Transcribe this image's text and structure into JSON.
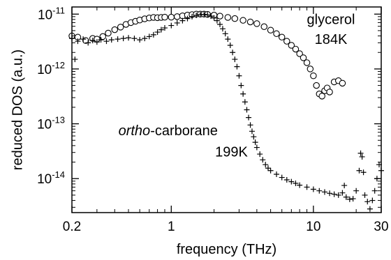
{
  "chart_data": {
    "type": "scatter",
    "title": "",
    "xlabel": "frequency (THz)",
    "ylabel": "reduced DOS (a.u.)",
    "x_scale": "log",
    "y_scale": "log",
    "xlim": [
      0.2,
      30
    ],
    "ylim": [
      2.4e-15,
      1.35e-11
    ],
    "grid": false,
    "legend": "none",
    "x_ticks": [
      {
        "value": 0.2,
        "label": "0.2"
      },
      {
        "value": 1,
        "label": "1"
      },
      {
        "value": 10,
        "label": "10"
      },
      {
        "value": 30,
        "label": "30"
      }
    ],
    "x_minor_ticks": [
      0.3,
      0.4,
      0.5,
      0.6,
      0.7,
      0.8,
      0.9,
      2,
      3,
      4,
      5,
      6,
      7,
      8,
      9,
      20
    ],
    "y_ticks": [
      {
        "value": 1e-11,
        "base": "10",
        "exp": "-11"
      },
      {
        "value": 1e-12,
        "base": "10",
        "exp": "-12"
      },
      {
        "value": 1e-13,
        "base": "10",
        "exp": "-13"
      },
      {
        "value": 1e-14,
        "base": "10",
        "exp": "-14"
      }
    ],
    "annotations": [
      {
        "id": "glycerol-name",
        "text": "glycerol",
        "x": 9.0,
        "y": 6.6e-12,
        "anchor": "start",
        "italic": false
      },
      {
        "id": "glycerol-temp",
        "text": "184K",
        "x": 10.2,
        "y": 2.85e-12,
        "anchor": "start",
        "italic": false
      },
      {
        "id": "carborane-name",
        "text_italic": "ortho",
        "text": "-carborane",
        "x": 0.95,
        "y": 6.2e-14,
        "anchor": "middle",
        "italic": true
      },
      {
        "id": "carborane-temp",
        "text": "199K",
        "x": 2.65,
        "y": 2.55e-14,
        "anchor": "middle",
        "italic": false
      }
    ],
    "series": [
      {
        "marker": "circle",
        "color": "#000000",
        "points": [
          [
            0.2,
            4e-12
          ],
          [
            0.22,
            3.8e-12
          ],
          [
            0.25,
            3.3e-12
          ],
          [
            0.28,
            3.6e-12
          ],
          [
            0.3,
            3.5e-12
          ],
          [
            0.33,
            3.9e-12
          ],
          [
            0.36,
            4.5e-12
          ],
          [
            0.4,
            5.2e-12
          ],
          [
            0.44,
            5.8e-12
          ],
          [
            0.48,
            6.5e-12
          ],
          [
            0.52,
            7e-12
          ],
          [
            0.56,
            7.4e-12
          ],
          [
            0.6,
            7.8e-12
          ],
          [
            0.65,
            8.2e-12
          ],
          [
            0.7,
            8.5e-12
          ],
          [
            0.75,
            8.7e-12
          ],
          [
            0.8,
            8.6e-12
          ],
          [
            0.85,
            8.7e-12
          ],
          [
            0.9,
            8.8e-12
          ],
          [
            1.0,
            8.8e-12
          ],
          [
            1.1,
            9e-12
          ],
          [
            1.2,
            9.3e-12
          ],
          [
            1.3,
            9.6e-12
          ],
          [
            1.4,
            9.8e-12
          ],
          [
            1.5,
            1e-11
          ],
          [
            1.6,
            1e-11
          ],
          [
            1.7,
            1e-11
          ],
          [
            1.8,
            9.9e-12
          ],
          [
            2.0,
            9.6e-12
          ],
          [
            2.2,
            9.2e-12
          ],
          [
            2.5,
            8.7e-12
          ],
          [
            2.8,
            8.3e-12
          ],
          [
            3.2,
            7.7e-12
          ],
          [
            3.6,
            7.2e-12
          ],
          [
            4.0,
            6.7e-12
          ],
          [
            4.5,
            5.9e-12
          ],
          [
            5.0,
            5.1e-12
          ],
          [
            5.5,
            4.4e-12
          ],
          [
            6.0,
            3.8e-12
          ],
          [
            6.5,
            3.2e-12
          ],
          [
            7.0,
            2.7e-12
          ],
          [
            7.5,
            2.3e-12
          ],
          [
            8.0,
            1.9e-12
          ],
          [
            8.5,
            1.6e-12
          ],
          [
            9.0,
            1.3e-12
          ],
          [
            9.5,
            1e-12
          ],
          [
            10.0,
            7.5e-13
          ],
          [
            10.5,
            5e-13
          ],
          [
            11.0,
            3.5e-13
          ],
          [
            11.5,
            3.2e-13
          ],
          [
            12.0,
            4e-13
          ],
          [
            12.5,
            4.5e-13
          ],
          [
            13.0,
            3.8e-13
          ],
          [
            14.0,
            5.8e-13
          ],
          [
            15.0,
            6.1e-13
          ],
          [
            16.0,
            5.5e-13
          ]
        ]
      },
      {
        "marker": "plus",
        "color": "#000000",
        "points": [
          [
            0.2,
            3.6e-12
          ],
          [
            0.21,
            1.5e-12
          ],
          [
            0.22,
            3.2e-12
          ],
          [
            0.24,
            3.5e-12
          ],
          [
            0.26,
            3e-12
          ],
          [
            0.28,
            3.3e-12
          ],
          [
            0.3,
            3.1e-12
          ],
          [
            0.32,
            3.4e-12
          ],
          [
            0.35,
            3.2e-12
          ],
          [
            0.38,
            3.4e-12
          ],
          [
            0.42,
            3.5e-12
          ],
          [
            0.46,
            3.6e-12
          ],
          [
            0.5,
            3.7e-12
          ],
          [
            0.55,
            3.6e-12
          ],
          [
            0.6,
            3.4e-12
          ],
          [
            0.65,
            3.6e-12
          ],
          [
            0.7,
            3.9e-12
          ],
          [
            0.75,
            4.2e-12
          ],
          [
            0.8,
            4.7e-12
          ],
          [
            0.85,
            5.2e-12
          ],
          [
            0.9,
            5.6e-12
          ],
          [
            1.0,
            6.2e-12
          ],
          [
            1.1,
            6.9e-12
          ],
          [
            1.2,
            7.6e-12
          ],
          [
            1.3,
            8.3e-12
          ],
          [
            1.4,
            9e-12
          ],
          [
            1.5,
            9.5e-12
          ],
          [
            1.6,
            9.8e-12
          ],
          [
            1.7,
            9.9e-12
          ],
          [
            1.8,
            9.7e-12
          ],
          [
            1.9,
            9.2e-12
          ],
          [
            2.0,
            8.5e-12
          ],
          [
            2.1,
            7.6e-12
          ],
          [
            2.2,
            6.5e-12
          ],
          [
            2.3,
            5.4e-12
          ],
          [
            2.4,
            4.4e-12
          ],
          [
            2.5,
            3.5e-12
          ],
          [
            2.6,
            2.7e-12
          ],
          [
            2.7,
            2e-12
          ],
          [
            2.8,
            1.5e-12
          ],
          [
            2.9,
            1.1e-12
          ],
          [
            3.0,
            7.5e-13
          ],
          [
            3.1,
            5e-13
          ],
          [
            3.2,
            3.5e-13
          ],
          [
            3.3,
            2.5e-13
          ],
          [
            3.4,
            1.8e-13
          ],
          [
            3.5,
            1.3e-13
          ],
          [
            3.6,
            9.5e-14
          ],
          [
            3.7,
            7.3e-14
          ],
          [
            3.8,
            5.8e-14
          ],
          [
            3.9,
            4.6e-14
          ],
          [
            4.0,
            3.7e-14
          ],
          [
            4.2,
            2.8e-14
          ],
          [
            4.4,
            2.2e-14
          ],
          [
            4.6,
            1.8e-14
          ],
          [
            4.8,
            1.55e-14
          ],
          [
            5.0,
            1.4e-14
          ],
          [
            5.5,
            1.2e-14
          ],
          [
            6.0,
            1.05e-14
          ],
          [
            6.5,
            9.5e-15
          ],
          [
            7.0,
            8.8e-15
          ],
          [
            7.5,
            8.2e-15
          ],
          [
            8.0,
            7.6e-15
          ],
          [
            9.0,
            7e-15
          ],
          [
            10.0,
            6.4e-15
          ],
          [
            11.0,
            6e-15
          ],
          [
            12.0,
            5.7e-15
          ],
          [
            13.0,
            5.4e-15
          ],
          [
            14.0,
            5.2e-15
          ],
          [
            15.0,
            5e-15
          ],
          [
            16.0,
            5.5e-15
          ],
          [
            16.5,
            7.5e-15
          ],
          [
            17.0,
            4.6e-15
          ],
          [
            18.0,
            4.2e-15
          ],
          [
            19.0,
            4.3e-15
          ],
          [
            20.0,
            6e-15
          ],
          [
            21.0,
            1.4e-14
          ],
          [
            21.5,
            2.9e-14
          ],
          [
            22.0,
            2.5e-14
          ],
          [
            22.5,
            1.3e-14
          ],
          [
            23.0,
            5e-15
          ],
          [
            24.0,
            3.8e-15
          ],
          [
            25.0,
            2.8e-15
          ],
          [
            26.0,
            4e-15
          ],
          [
            27.0,
            6e-15
          ],
          [
            28.0,
            1e-14
          ],
          [
            29.0,
            1.8e-14
          ],
          [
            30.0,
            1.4e-14
          ]
        ]
      }
    ]
  }
}
